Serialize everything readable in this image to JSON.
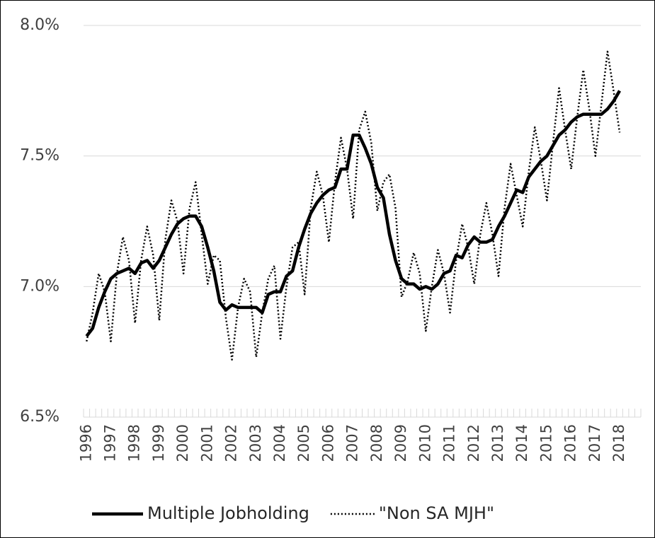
{
  "chart_data": {
    "type": "line",
    "categories": [
      "1996",
      null,
      null,
      null,
      "1997",
      null,
      null,
      null,
      "1998",
      null,
      null,
      null,
      "1999",
      null,
      null,
      null,
      "2000",
      null,
      null,
      null,
      "2001",
      null,
      null,
      null,
      "2002",
      null,
      null,
      null,
      "2003",
      null,
      null,
      null,
      "2004",
      null,
      null,
      null,
      "2005",
      null,
      null,
      null,
      "2006",
      null,
      null,
      null,
      "2007",
      null,
      null,
      null,
      "2008",
      null,
      null,
      null,
      "2009",
      null,
      null,
      null,
      "2010",
      null,
      null,
      null,
      "2011",
      null,
      null,
      null,
      "2012",
      null,
      null,
      null,
      "2013",
      null,
      null,
      null,
      "2014",
      null,
      null,
      null,
      "2015",
      null,
      null,
      null,
      "2016",
      null,
      null,
      null,
      "2017",
      null,
      null,
      null,
      "2018",
      null,
      null,
      null
    ],
    "series": [
      {
        "name": "Multiple Jobholding",
        "color": "#000000",
        "line_style": "solid",
        "values": [
          6.81,
          6.84,
          6.92,
          6.98,
          7.03,
          7.05,
          7.06,
          7.07,
          7.05,
          7.09,
          7.1,
          7.07,
          7.1,
          7.15,
          7.2,
          7.24,
          7.26,
          7.27,
          7.27,
          7.23,
          7.15,
          7.06,
          6.94,
          6.91,
          6.93,
          6.92,
          6.92,
          6.92,
          6.92,
          6.9,
          6.97,
          6.98,
          6.98,
          7.04,
          7.06,
          7.15,
          7.22,
          7.28,
          7.32,
          7.35,
          7.37,
          7.38,
          7.45,
          7.45,
          7.58,
          7.58,
          7.53,
          7.47,
          7.38,
          7.34,
          7.2,
          7.1,
          7.03,
          7.01,
          7.01,
          6.99,
          7.0,
          6.99,
          7.01,
          7.05,
          7.06,
          7.12,
          7.11,
          7.16,
          7.19,
          7.17,
          7.17,
          7.18,
          7.23,
          7.27,
          7.32,
          7.37,
          7.36,
          7.42,
          7.45,
          7.48,
          7.5,
          7.54,
          7.58,
          7.6,
          7.63,
          7.65,
          7.66,
          7.66,
          7.66,
          7.66,
          7.68,
          7.71,
          7.75,
          null,
          null,
          null
        ]
      },
      {
        "name": "\"Non SA MJH\"",
        "color": "#000000",
        "line_style": "dotted",
        "values": [
          6.79,
          6.9,
          7.05,
          6.98,
          6.79,
          7.05,
          7.19,
          7.1,
          6.86,
          7.1,
          7.23,
          7.12,
          6.87,
          7.18,
          7.33,
          7.25,
          7.05,
          7.3,
          7.4,
          7.2,
          7.01,
          7.12,
          7.1,
          6.88,
          6.72,
          6.92,
          7.03,
          6.98,
          6.73,
          6.9,
          7.03,
          7.08,
          6.8,
          7.0,
          7.15,
          7.17,
          6.97,
          7.3,
          7.44,
          7.35,
          7.17,
          7.4,
          7.57,
          7.45,
          7.26,
          7.6,
          7.67,
          7.55,
          7.29,
          7.4,
          7.43,
          7.3,
          6.96,
          7.02,
          7.13,
          7.05,
          6.83,
          7.0,
          7.14,
          7.05,
          6.9,
          7.1,
          7.24,
          7.15,
          7.01,
          7.2,
          7.32,
          7.2,
          7.04,
          7.3,
          7.47,
          7.35,
          7.23,
          7.44,
          7.61,
          7.48,
          7.33,
          7.55,
          7.76,
          7.6,
          7.45,
          7.65,
          7.83,
          7.68,
          7.5,
          7.7,
          7.9,
          7.75,
          7.59,
          null,
          null,
          null
        ]
      }
    ],
    "ylim": [
      6.5,
      8.0
    ],
    "yticks": [
      {
        "value": 6.5,
        "label": "6.5%"
      },
      {
        "value": 7.0,
        "label": "7.0%"
      },
      {
        "value": 7.5,
        "label": "7.5%"
      },
      {
        "value": 8.0,
        "label": "8.0%"
      }
    ],
    "grid": true,
    "legend": "bottom"
  }
}
